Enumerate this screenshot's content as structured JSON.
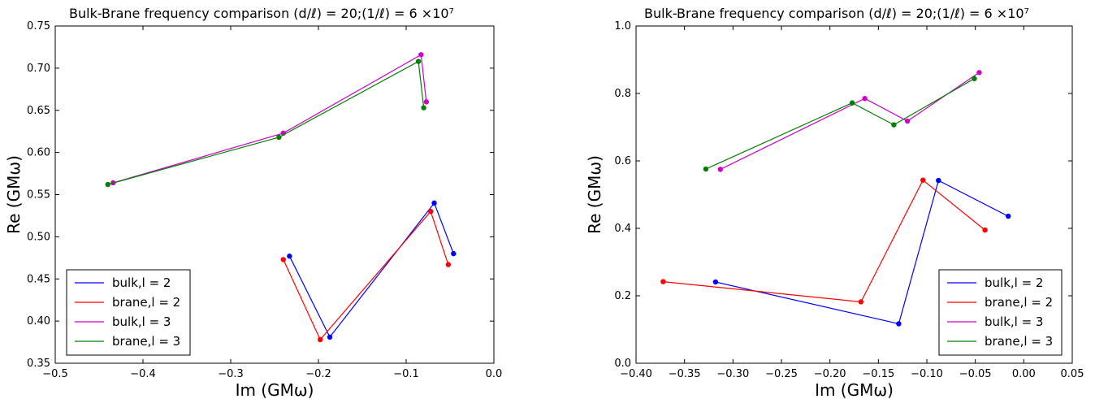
{
  "chart_data": [
    {
      "type": "line",
      "title": "Bulk-Brane frequency comparison (d/ℓ) = 20;(1/ℓ) = 6 ×10⁷",
      "xlabel": "Im (GMω)",
      "ylabel": "Re (GMω)",
      "xlim": [
        -0.5,
        0.0
      ],
      "ylim": [
        0.35,
        0.75
      ],
      "xticks": [
        -0.5,
        -0.4,
        -0.3,
        -0.2,
        -0.1,
        0.0
      ],
      "xtick_labels": [
        "−0.5",
        "−0.4",
        "−0.3",
        "−0.2",
        "−0.1",
        "0.0"
      ],
      "yticks": [
        0.35,
        0.4,
        0.45,
        0.5,
        0.55,
        0.6,
        0.65,
        0.7,
        0.75
      ],
      "ytick_labels": [
        "0.35",
        "0.40",
        "0.45",
        "0.50",
        "0.55",
        "0.60",
        "0.65",
        "0.70",
        "0.75"
      ],
      "legend": "lower-left",
      "grid": false,
      "series": [
        {
          "name": "bulk,l = 2",
          "color": "#0000ff",
          "points": [
            [
              -0.233,
              0.477
            ],
            [
              -0.187,
              0.381
            ],
            [
              -0.068,
              0.54
            ],
            [
              -0.046,
              0.48
            ]
          ]
        },
        {
          "name": "brane,l = 2",
          "color": "#ff0000",
          "points": [
            [
              -0.24,
              0.473
            ],
            [
              -0.198,
              0.378
            ],
            [
              -0.072,
              0.53
            ],
            [
              -0.052,
              0.467
            ]
          ]
        },
        {
          "name": "bulk,l = 3",
          "color": "#cc00cc",
          "points": [
            [
              -0.434,
              0.564
            ],
            [
              -0.24,
              0.623
            ],
            [
              -0.083,
              0.716
            ],
            [
              -0.077,
              0.66
            ]
          ]
        },
        {
          "name": "brane,l = 3",
          "color": "#008000",
          "points": [
            [
              -0.44,
              0.562
            ],
            [
              -0.245,
              0.618
            ],
            [
              -0.086,
              0.708
            ],
            [
              -0.08,
              0.653
            ]
          ]
        }
      ]
    },
    {
      "type": "line",
      "title": "Bulk-Brane frequency comparison (d/ℓ) = 20;(1/ℓ) = 6 ×10⁷",
      "xlabel": "Im (GMω)",
      "ylabel": "Re (GMω)",
      "xlim": [
        -0.4,
        0.05
      ],
      "ylim": [
        0.0,
        1.0
      ],
      "xticks": [
        -0.4,
        -0.35,
        -0.3,
        -0.25,
        -0.2,
        -0.15,
        -0.1,
        -0.05,
        0.0,
        0.05
      ],
      "xtick_labels": [
        "−0.40",
        "−0.35",
        "−0.30",
        "−0.25",
        "−0.20",
        "−0.15",
        "−0.10",
        "−0.05",
        "0.00",
        "0.05"
      ],
      "yticks": [
        0.0,
        0.2,
        0.4,
        0.6,
        0.8,
        1.0
      ],
      "ytick_labels": [
        "0.0",
        "0.2",
        "0.4",
        "0.6",
        "0.8",
        "1.0"
      ],
      "legend": "lower-right",
      "grid": false,
      "series": [
        {
          "name": "bulk,l = 2",
          "color": "#0000ff",
          "points": [
            [
              -0.318,
              0.241
            ],
            [
              -0.129,
              0.117
            ],
            [
              -0.088,
              0.542
            ],
            [
              -0.016,
              0.436
            ]
          ]
        },
        {
          "name": "brane,l = 2",
          "color": "#ff0000",
          "points": [
            [
              -0.372,
              0.242
            ],
            [
              -0.168,
              0.182
            ],
            [
              -0.104,
              0.543
            ],
            [
              -0.04,
              0.395
            ]
          ]
        },
        {
          "name": "bulk,l = 3",
          "color": "#cc00cc",
          "points": [
            [
              -0.313,
              0.575
            ],
            [
              -0.164,
              0.785
            ],
            [
              -0.12,
              0.718
            ],
            [
              -0.046,
              0.862
            ]
          ]
        },
        {
          "name": "brane,l = 3",
          "color": "#008000",
          "points": [
            [
              -0.328,
              0.576
            ],
            [
              -0.177,
              0.772
            ],
            [
              -0.134,
              0.707
            ],
            [
              -0.051,
              0.844
            ]
          ]
        }
      ]
    }
  ]
}
